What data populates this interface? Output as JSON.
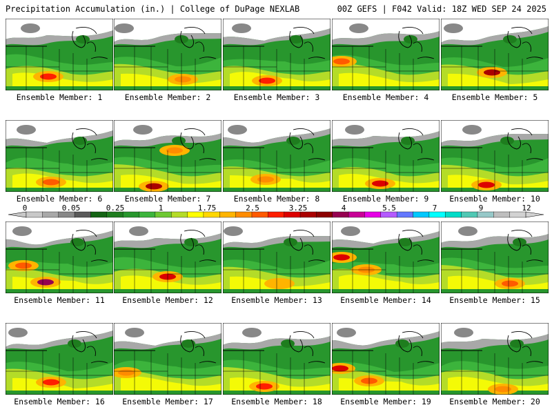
{
  "header": {
    "title_left": "Precipitation Accumulation (in.) | College of DuPage NEXLAB",
    "title_right": "00Z GEFS | F042 Valid: 18Z WED SEP 24 2025"
  },
  "legend": {
    "tick_labels": [
      "0",
      "0.05",
      "0.25",
      "1",
      "1.75",
      "2.5",
      "3.25",
      "4",
      "5.5",
      "7",
      "9",
      "12"
    ],
    "colors": [
      "#c8c8c8",
      "#a8a8a8",
      "#888888",
      "#5a5a5a",
      "#146414",
      "#1e7d1e",
      "#28962d",
      "#3cb43c",
      "#6ec832",
      "#b4dc28",
      "#ffff00",
      "#ffd700",
      "#ffb400",
      "#ff8c00",
      "#ff5a00",
      "#ff1e00",
      "#dc0000",
      "#aa0000",
      "#8c0000",
      "#960050",
      "#c80096",
      "#e600e6",
      "#b45aff",
      "#6478ff",
      "#00c8ff",
      "#00ffff",
      "#00dcc8",
      "#50c8b4",
      "#96c8c8",
      "#bebebe",
      "#d2d2d2"
    ]
  },
  "panels": [
    {
      "label": "Ensemble Member: 1",
      "member": 1
    },
    {
      "label": "Ensemble Member: 2",
      "member": 2
    },
    {
      "label": "Ensemble Member: 3",
      "member": 3
    },
    {
      "label": "Ensemble Member: 4",
      "member": 4
    },
    {
      "label": "Ensemble Member: 5",
      "member": 5
    },
    {
      "label": "Ensemble Member: 6",
      "member": 6
    },
    {
      "label": "Ensemble Member: 7",
      "member": 7
    },
    {
      "label": "Ensemble Member: 8",
      "member": 8
    },
    {
      "label": "Ensemble Member: 9",
      "member": 9
    },
    {
      "label": "Ensemble Member: 10",
      "member": 10
    },
    {
      "label": "Ensemble Member: 11",
      "member": 11
    },
    {
      "label": "Ensemble Member: 12",
      "member": 12
    },
    {
      "label": "Ensemble Member: 13",
      "member": 13
    },
    {
      "label": "Ensemble Member: 14",
      "member": 14
    },
    {
      "label": "Ensemble Member: 15",
      "member": 15
    },
    {
      "label": "Ensemble Member: 16",
      "member": 16
    },
    {
      "label": "Ensemble Member: 17",
      "member": 17
    },
    {
      "label": "Ensemble Member: 18",
      "member": 18
    },
    {
      "label": "Ensemble Member: 19",
      "member": 19
    },
    {
      "label": "Ensemble Member: 20",
      "member": 20
    }
  ]
}
